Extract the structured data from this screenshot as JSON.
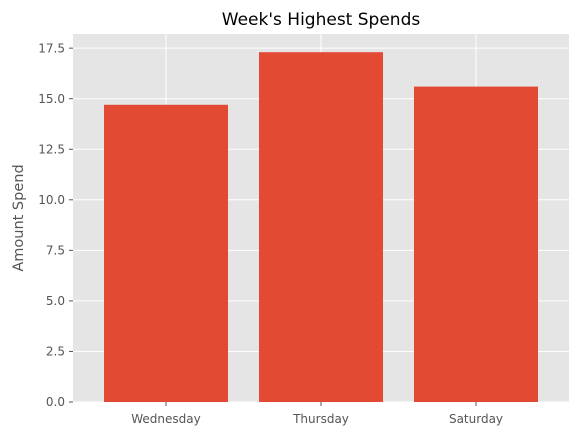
{
  "chart_data": {
    "type": "bar",
    "title": "Week's Highest Spends",
    "xlabel": "",
    "ylabel": "Amount Spend",
    "categories": [
      "Wednesday",
      "Thursday",
      "Saturday"
    ],
    "values": [
      14.7,
      17.3,
      15.6
    ],
    "ylim": [
      0,
      18.2
    ],
    "yticks": [
      0.0,
      2.5,
      5.0,
      7.5,
      10.0,
      12.5,
      15.0,
      17.5
    ],
    "ytick_labels": [
      "0.0",
      "2.5",
      "5.0",
      "7.5",
      "10.0",
      "12.5",
      "15.0",
      "17.5"
    ],
    "grid": true,
    "colors": {
      "bar": "#E24A33",
      "plot_background": "#E5E5E5",
      "grid": "#FFFFFF",
      "text": "#555555",
      "title": "#000000"
    }
  }
}
